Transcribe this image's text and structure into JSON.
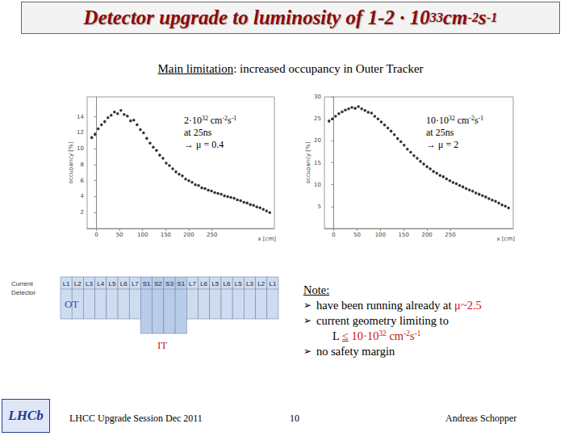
{
  "title": [
    {
      "text": "Detector upgrade to luminosity of 1-2 · 10"
    },
    {
      "text": "33",
      "sup": true
    },
    {
      "text": " cm"
    },
    {
      "text": "-2",
      "sup": true
    },
    {
      "text": "s"
    },
    {
      "text": "-1",
      "sup": true
    }
  ],
  "subtitle": [
    {
      "text": "Main limitation",
      "underline": true
    },
    {
      "text": ": increased occupancy in Outer Tracker"
    }
  ],
  "chart_data": [
    {
      "type": "scatter",
      "marker": "circle",
      "color": "#000000",
      "grid": false,
      "xlabel": "x [cm]",
      "ylabel": "occupancy [%]",
      "xlim": [
        -20,
        385
      ],
      "xticks": [
        0,
        50,
        100,
        150,
        200,
        250
      ],
      "ylim": [
        0,
        16.5
      ],
      "yticks": [
        2,
        4,
        6,
        8,
        10,
        12,
        14
      ],
      "x": [
        -10,
        -3,
        4,
        11,
        18,
        25,
        32,
        39,
        46,
        53,
        60,
        67,
        74,
        81,
        88,
        95,
        102,
        109,
        116,
        123,
        130,
        137,
        144,
        151,
        158,
        165,
        172,
        179,
        186,
        193,
        200,
        207,
        214,
        221,
        228,
        235,
        242,
        249,
        256,
        263,
        270,
        277,
        284,
        291,
        298,
        305,
        312,
        319,
        326,
        333,
        340,
        347,
        354,
        361,
        368,
        375
      ],
      "values": [
        11.4,
        11.8,
        12.5,
        13.0,
        13.4,
        13.9,
        14.2,
        14.6,
        14.4,
        14.8,
        14.3,
        14.1,
        13.5,
        13.6,
        13.0,
        12.4,
        12.0,
        11.3,
        10.7,
        10.2,
        9.8,
        9.2,
        8.8,
        8.2,
        7.9,
        7.5,
        7.1,
        6.8,
        6.6,
        6.2,
        6.0,
        5.8,
        5.5,
        5.4,
        5.1,
        5.0,
        4.8,
        4.7,
        4.5,
        4.4,
        4.3,
        4.1,
        4.0,
        3.9,
        3.8,
        3.6,
        3.5,
        3.3,
        3.2,
        3.0,
        2.9,
        2.7,
        2.6,
        2.4,
        2.2,
        2.0
      ],
      "annotation": [
        [
          {
            "text": "2·10"
          },
          {
            "text": "32",
            "sup": true
          },
          {
            "text": " cm"
          },
          {
            "text": "-2",
            "sup": true
          },
          {
            "text": "s"
          },
          {
            "text": "-1",
            "sup": true
          }
        ],
        [
          {
            "text": "at 25ns"
          }
        ],
        [
          {
            "text": "→ μ = 0.4"
          }
        ]
      ]
    },
    {
      "type": "scatter",
      "marker": "circle",
      "color": "#000000",
      "grid": false,
      "xlabel": "x [cm]",
      "ylabel": "occupancy [%]",
      "xlim": [
        -20,
        385
      ],
      "xticks": [
        0,
        50,
        100,
        150,
        200,
        250
      ],
      "ylim": [
        0,
        30
      ],
      "yticks": [
        5,
        10,
        15,
        20,
        25,
        30
      ],
      "x": [
        -10,
        -3,
        4,
        11,
        18,
        25,
        32,
        39,
        46,
        53,
        60,
        67,
        74,
        81,
        88,
        95,
        102,
        109,
        116,
        123,
        130,
        137,
        144,
        151,
        158,
        165,
        172,
        179,
        186,
        193,
        200,
        207,
        214,
        221,
        228,
        235,
        242,
        249,
        256,
        263,
        270,
        277,
        284,
        291,
        298,
        305,
        312,
        319,
        326,
        333,
        340,
        347,
        354,
        361,
        368,
        375
      ],
      "values": [
        24.5,
        25.0,
        25.6,
        26.2,
        26.6,
        27.0,
        27.3,
        27.6,
        27.4,
        27.8,
        27.3,
        26.9,
        26.5,
        26.3,
        25.6,
        25.0,
        24.3,
        23.6,
        22.9,
        22.2,
        21.4,
        20.5,
        19.8,
        19.0,
        18.1,
        17.4,
        16.6,
        16.0,
        15.3,
        14.7,
        14.1,
        13.6,
        13.0,
        12.6,
        12.1,
        11.8,
        11.3,
        10.9,
        10.5,
        10.2,
        9.8,
        9.5,
        9.1,
        8.8,
        8.5,
        8.1,
        7.8,
        7.5,
        7.2,
        6.8,
        6.5,
        6.2,
        5.8,
        5.4,
        5.1,
        4.7
      ],
      "annotation": [
        [
          {
            "text": "10·10"
          },
          {
            "text": "32",
            "sup": true
          },
          {
            "text": " cm"
          },
          {
            "text": "-2",
            "sup": true
          },
          {
            "text": "s"
          },
          {
            "text": "-1",
            "sup": true
          }
        ],
        [
          {
            "text": "at 25ns"
          }
        ],
        [
          {
            "text": "→ μ = 2"
          }
        ]
      ]
    }
  ],
  "detector": {
    "label": [
      "Current",
      "Detector"
    ],
    "layers": [
      "L1",
      "L2",
      "L3",
      "L4",
      "L5",
      "L6",
      "L7",
      "S1",
      "S2",
      "S3",
      "S1",
      "L7",
      "L6",
      "L5",
      "L6",
      "L5",
      "L3",
      "L2",
      "L1"
    ],
    "ot_label": "OT",
    "it_label": "IT"
  },
  "notes": {
    "heading": "Note:",
    "bullet": "➢",
    "items": [
      [
        [
          {
            "text": "have been running already at "
          },
          {
            "text": "μ~2.5",
            "highlight": true
          }
        ]
      ],
      [
        [
          {
            "text": "current geometry limiting to"
          }
        ],
        [
          {
            "text": "L "
          },
          {
            "text": "≤",
            "highlight": true,
            "underline": true
          },
          {
            "text": " 10·10",
            "highlight": true
          },
          {
            "text": "32",
            "sup": true,
            "highlight": true
          },
          {
            "text": " cm",
            "highlight": true
          },
          {
            "text": "-2",
            "sup": true,
            "highlight": true
          },
          {
            "text": "s",
            "highlight": true
          },
          {
            "text": "-1",
            "sup": true,
            "highlight": true
          }
        ]
      ],
      [
        [
          {
            "text": "no safety margin"
          }
        ]
      ]
    ]
  },
  "footer": {
    "logo": "LHCb",
    "left": "LHCC Upgrade Session Dec 2011",
    "page": "10",
    "author": "Andreas Schopper"
  }
}
